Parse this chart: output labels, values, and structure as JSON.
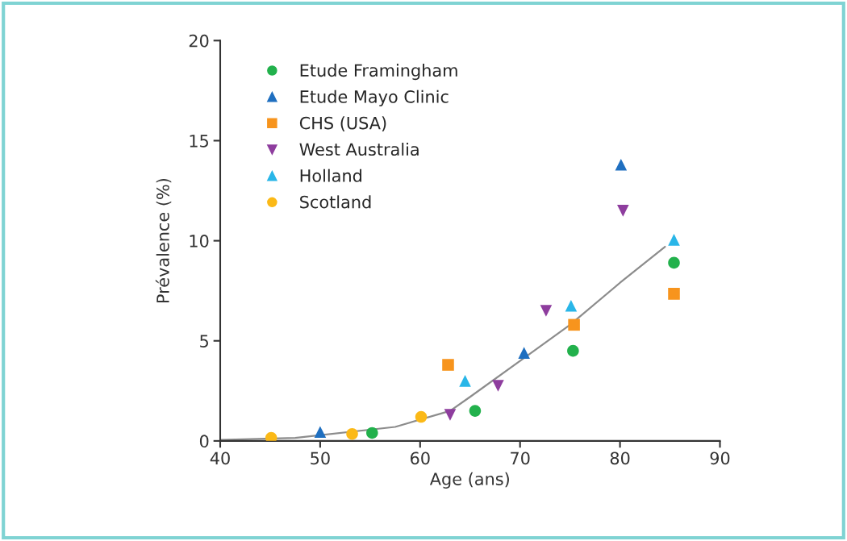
{
  "chart_data": {
    "type": "scatter",
    "xlabel": "Age (ans)",
    "ylabel": "Prévalence (%)",
    "xlim": [
      40,
      90
    ],
    "xticks": [
      40,
      50,
      60,
      70,
      80,
      90
    ],
    "ylim": [
      0,
      20
    ],
    "yticks": [
      0,
      5,
      10,
      15,
      20
    ],
    "grid": false,
    "legend": "top left",
    "series": [
      {
        "name": "Etude Framingham",
        "color": "#22b14c",
        "marker": "circle",
        "x": [
          55.2,
          65.5,
          75.3,
          85.4
        ],
        "values": [
          0.4,
          1.5,
          4.5,
          8.9
        ]
      },
      {
        "name": "Etude Mayo Clinic",
        "color": "#1f6fc0",
        "marker": "triangle",
        "x": [
          50,
          70.4,
          80.1
        ],
        "values": [
          0.45,
          4.4,
          13.8
        ]
      },
      {
        "name": "CHS (USA)",
        "color": "#f7941d",
        "marker": "square",
        "x": [
          62.8,
          75.4,
          85.4
        ],
        "values": [
          3.8,
          5.8,
          7.35
        ]
      },
      {
        "name": "West Australia",
        "color": "#8e3d9e",
        "marker": "triangle_down",
        "x": [
          63.0,
          67.8,
          72.6,
          80.3
        ],
        "values": [
          1.3,
          2.75,
          6.5,
          11.5
        ]
      },
      {
        "name": "Holland",
        "color": "#29b6e8",
        "marker": "triangle",
        "x": [
          64.5,
          75.1,
          85.4
        ],
        "values": [
          3.0,
          6.75,
          10.05
        ]
      },
      {
        "name": "Scotland",
        "color": "#fbb917",
        "marker": "circle",
        "x": [
          45.1,
          53.2,
          60.1
        ],
        "values": [
          0.15,
          0.35,
          1.2
        ]
      },
      {
        "type": "line",
        "color": "#8c8c8c",
        "marker": "none",
        "x": [
          40,
          47.5,
          57.5,
          63,
          65,
          70,
          75,
          80,
          84.5
        ],
        "values": [
          0.05,
          0.15,
          0.7,
          1.5,
          2.2,
          4.0,
          5.8,
          7.9,
          9.7
        ]
      }
    ]
  }
}
